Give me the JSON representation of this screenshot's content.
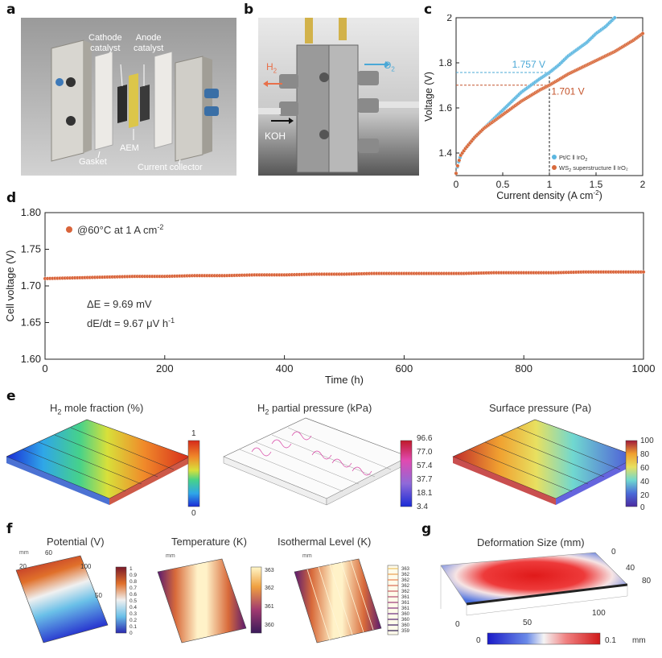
{
  "panel_labels": {
    "a": "a",
    "b": "b",
    "c": "c",
    "d": "d",
    "e": "e",
    "f": "f",
    "g": "g"
  },
  "panel_a": {
    "cathode_catalyst_1": "Cathode",
    "cathode_catalyst_2": "catalyst",
    "anode_catalyst_1": "Anode",
    "anode_catalyst_2": "catalyst",
    "aem": "AEM",
    "gasket": "Gasket",
    "current_collector": "Current collector"
  },
  "panel_b": {
    "h2_base": "H",
    "h2_sub": "2",
    "o2_base": "O",
    "o2_sub": "2",
    "koh": "KOH"
  },
  "colors": {
    "ptc_series": "#5bb6e0",
    "ws2_series": "#d86a3c",
    "stability_points": "#d9643a",
    "ptc_annotation": "#4aa8d6",
    "ws2_annotation": "#c4532a"
  },
  "chart_data": [
    {
      "id": "c",
      "type": "scatter",
      "xlabel_base": "Current density (A cm",
      "xlabel_sup": "-2",
      "xlabel_end": ")",
      "ylabel": "Voltage (V)",
      "xlim": [
        0,
        2
      ],
      "ylim": [
        1.3,
        2.0
      ],
      "xticks": [
        "0",
        "0.5",
        "1",
        "1.5",
        "2"
      ],
      "yticks": [
        "1.4",
        "1.6",
        "1.8",
        "2"
      ],
      "grid": false,
      "legend_position": "bottom-right",
      "legend": [
        {
          "base": "Pt/C ‖ IrO",
          "sub": "2",
          "post": ""
        },
        {
          "base": "WS",
          "sub": "2",
          "post": " superstructure ‖ IrO₂"
        }
      ],
      "annotations": [
        {
          "text": "1.757 V",
          "x": 1.0,
          "y": 1.757
        },
        {
          "text": "1.701 V",
          "x": 1.0,
          "y": 1.701
        }
      ],
      "series": [
        {
          "name": "Pt/C ‖ IrO2",
          "x": [
            0,
            0.02,
            0.05,
            0.1,
            0.2,
            0.3,
            0.4,
            0.5,
            0.6,
            0.7,
            0.8,
            0.9,
            1.0,
            1.1,
            1.2,
            1.3,
            1.4,
            1.5,
            1.6,
            1.7
          ],
          "y": [
            1.31,
            1.35,
            1.39,
            1.42,
            1.47,
            1.51,
            1.55,
            1.59,
            1.63,
            1.67,
            1.7,
            1.73,
            1.757,
            1.79,
            1.83,
            1.86,
            1.89,
            1.93,
            1.96,
            2.0
          ]
        },
        {
          "name": "WS2 superstructure ‖ IrO2",
          "x": [
            0,
            0.02,
            0.05,
            0.1,
            0.2,
            0.3,
            0.4,
            0.5,
            0.6,
            0.7,
            0.8,
            0.9,
            1.0,
            1.1,
            1.2,
            1.3,
            1.4,
            1.5,
            1.6,
            1.7,
            1.8,
            1.9,
            2.0
          ],
          "y": [
            1.31,
            1.35,
            1.39,
            1.42,
            1.47,
            1.51,
            1.54,
            1.57,
            1.6,
            1.63,
            1.655,
            1.68,
            1.701,
            1.725,
            1.75,
            1.77,
            1.79,
            1.81,
            1.83,
            1.85,
            1.875,
            1.9,
            1.93
          ]
        }
      ]
    },
    {
      "id": "d",
      "type": "scatter",
      "xlabel": "Time (h)",
      "ylabel": "Cell voltage (V)",
      "xlim": [
        0,
        1000
      ],
      "ylim": [
        1.6,
        1.8
      ],
      "xticks": [
        "0",
        "200",
        "400",
        "600",
        "800",
        "1000"
      ],
      "yticks": [
        "1.60",
        "1.65",
        "1.70",
        "1.75",
        "1.80"
      ],
      "grid": false,
      "legend_position": "top-left",
      "legend_base": "@60°C at 1 A cm",
      "legend_sup": "-2",
      "annotation_de": "ΔE = 9.69 mV",
      "annotation_dedt_base": "dE/dt = 9.67 μV h",
      "annotation_dedt_sup": "-1",
      "series": [
        {
          "name": "@60°C at 1 A cm-2",
          "x": [
            0,
            50,
            100,
            150,
            200,
            250,
            300,
            350,
            400,
            450,
            500,
            550,
            600,
            650,
            700,
            750,
            800,
            850,
            900,
            950,
            1000
          ],
          "y": [
            1.71,
            1.711,
            1.712,
            1.713,
            1.713,
            1.714,
            1.714,
            1.715,
            1.715,
            1.716,
            1.716,
            1.717,
            1.717,
            1.717,
            1.717,
            1.718,
            1.718,
            1.718,
            1.719,
            1.719,
            1.719
          ]
        }
      ]
    }
  ],
  "panel_e": {
    "h2_fraction_title_base": "H",
    "h2_fraction_title_sub": "2",
    "h2_fraction_title_post": " mole fraction (%)",
    "h2_fraction_scale": [
      "1",
      "0"
    ],
    "h2_pressure_title_base": "H",
    "h2_pressure_title_sub": "2",
    "h2_pressure_title_post": " partial pressure (kPa)",
    "h2_pressure_scale": [
      "96.6",
      "77.0",
      "57.4",
      "37.7",
      "18.1",
      "3.4"
    ],
    "surface_title": "Surface pressure (Pa)",
    "surface_scale": [
      "100",
      "80",
      "60",
      "40",
      "20",
      "0"
    ]
  },
  "panel_f": {
    "potential_title": "Potential (V)",
    "potential_scale": [
      "1",
      "0.9",
      "0.8",
      "0.7",
      "0.6",
      "0.5",
      "0.4",
      "0.3",
      "0.2",
      "0.1",
      "0"
    ],
    "potential_axis": [
      "mm",
      "60",
      "20",
      "100",
      "50"
    ],
    "temperature_title": "Temperature (K)",
    "temperature_scale": [
      "363",
      "362",
      "361",
      "360"
    ],
    "temperature_axis": "mm",
    "isothermal_title": "Isothermal Level (K)",
    "isothermal_scale": [
      "363",
      "362",
      "362",
      "362",
      "362",
      "361",
      "361",
      "361",
      "360",
      "360",
      "360",
      "359"
    ],
    "isothermal_axis": "mm"
  },
  "panel_g": {
    "title": "Deformation Size (mm)",
    "axis_labels": [
      "0",
      "40",
      "80",
      "100",
      "50",
      "0"
    ],
    "scale_min": "0",
    "scale_max": "0.1",
    "scale_unit": "mm"
  }
}
